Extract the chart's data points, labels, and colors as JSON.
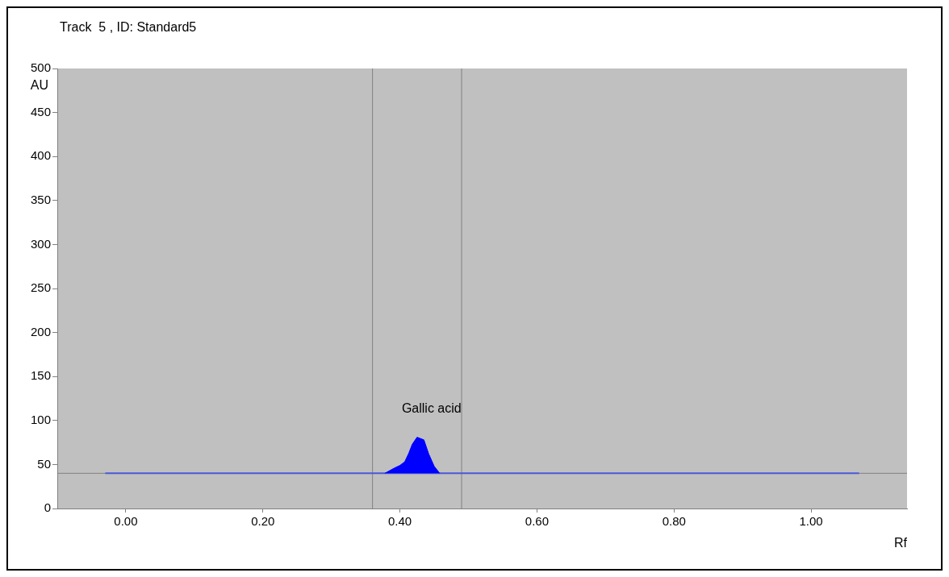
{
  "chart_data": {
    "type": "line",
    "title": "Track  5 , ID: Standard5",
    "xlabel": "Rf",
    "ylabel": "AU",
    "series": [
      {
        "type": "line",
        "color": "#4a5ad8",
        "x": [
          -0.03,
          0.3,
          0.36,
          0.378,
          0.458,
          0.49,
          0.7,
          1.07
        ],
        "values": [
          40,
          40,
          40,
          40,
          40,
          40,
          40,
          40
        ]
      },
      {
        "type": "area",
        "color": "#0000ff",
        "x": [
          0.378,
          0.392,
          0.4,
          0.407,
          0.413,
          0.418,
          0.425,
          0.435,
          0.442,
          0.45,
          0.458
        ],
        "values": [
          40,
          46,
          49,
          53,
          63,
          73,
          81,
          78,
          62,
          48,
          40
        ]
      }
    ],
    "annotations": [
      {
        "text": "Gallic acid",
        "x": 0.425,
        "y": 81
      }
    ],
    "ref_lines": [
      {
        "axis": "y",
        "value": 40,
        "color": "#808080"
      },
      {
        "axis": "x",
        "value": 0.36,
        "color": "#808080"
      },
      {
        "axis": "x",
        "value": 0.49,
        "color": "#808080"
      }
    ],
    "xlim": [
      -0.1,
      1.14
    ],
    "ylim": [
      0,
      500
    ],
    "xticks": [
      {
        "value": 0,
        "label": "0.00"
      },
      {
        "value": 0.2,
        "label": "0.20"
      },
      {
        "value": 0.4,
        "label": "0.40"
      },
      {
        "value": 0.6,
        "label": "0.60"
      },
      {
        "value": 0.8,
        "label": "0.80"
      },
      {
        "value": 1,
        "label": "1.00"
      }
    ],
    "yticks": [
      0,
      50,
      100,
      150,
      200,
      250,
      300,
      350,
      400,
      450,
      500
    ]
  }
}
